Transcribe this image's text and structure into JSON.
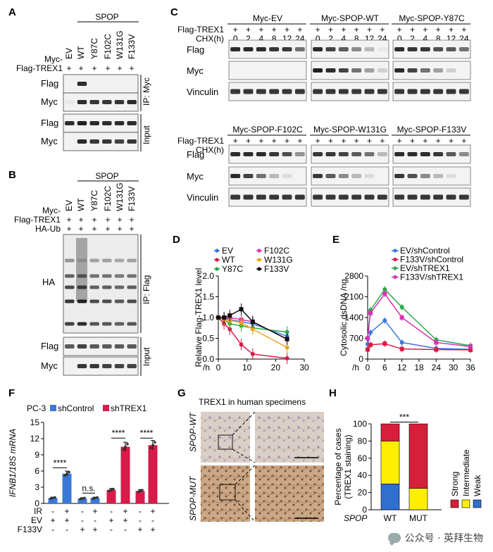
{
  "panelA": {
    "letter": "A",
    "spop": "SPOP",
    "myc_label": "Myc-",
    "trex_label": "Flag-TREX1",
    "lanes": [
      "EV",
      "WT",
      "Y87C",
      "F102C",
      "W131G",
      "F133V"
    ],
    "signs": [
      "+",
      "+",
      "+",
      "+",
      "+",
      "+"
    ],
    "rows": [
      "Flag",
      "Myc",
      "Flag",
      "Myc"
    ],
    "ip": "IP: Myc",
    "input": "Input"
  },
  "panelB": {
    "letter": "B",
    "spop": "SPOP",
    "myc_label": "Myc-",
    "trex_label": "Flag-TREX1",
    "ub_label": "HA-Ub",
    "lanes": [
      "EV",
      "WT",
      "Y87C",
      "F102C",
      "W131G",
      "F133V"
    ],
    "signs": [
      "+",
      "+",
      "+",
      "+",
      "+",
      "+"
    ],
    "rows": [
      "HA",
      "Flag",
      "Myc"
    ],
    "ip": "IP: Flag",
    "input": "Input"
  },
  "panelC": {
    "letter": "C",
    "trex_label": "Flag-TREX1",
    "chx_label": "CHX(h)",
    "timepoints": [
      "0",
      "2",
      "4",
      "8",
      "12",
      "24"
    ],
    "signs": [
      "+",
      "+",
      "+",
      "+",
      "+",
      "+"
    ],
    "groups": [
      "Myc-EV",
      "Myc-SPOP-WT",
      "Myc-SPOP-Y87C",
      "Myc-SPOP-F102C",
      "Myc-SPOP-W131G",
      "Myc-SPOP-F133V"
    ],
    "rows": [
      "Flag",
      "Myc",
      "Vinculin"
    ]
  },
  "panelD": {
    "letter": "D"
  },
  "panelE": {
    "letter": "E"
  },
  "panelF": {
    "letter": "F",
    "cell": "PC-3",
    "row_labels": [
      "IR",
      "EV",
      "F133V"
    ],
    "signs": {
      "IR": [
        "-",
        "+",
        "-",
        "+",
        "-",
        "+",
        "-",
        "+"
      ],
      "EV": [
        "+",
        "+",
        "-",
        "-",
        "+",
        "+",
        "-",
        "-"
      ],
      "F133V": [
        "-",
        "-",
        "+",
        "+",
        "-",
        "-",
        "+",
        "+"
      ]
    }
  },
  "panelG": {
    "letter": "G",
    "title": "TREX1 in human specimens",
    "wt_label": "SPOP-WT",
    "mut_label": "SPOP-MUT"
  },
  "panelH": {
    "letter": "H"
  },
  "watermark": "公众号 · 英拜生物",
  "colors": {
    "blue": "#3a78d8",
    "red": "#d81b48",
    "green": "#2aa84a",
    "pink": "#d633b2",
    "orange": "#f2a31b",
    "black": "#111111",
    "yellow": "#ffee00",
    "h_red": "#d61f3a",
    "h_blue": "#2f6fd0"
  },
  "chart_data": [
    {
      "type": "line",
      "title": "",
      "xlabel": "/h",
      "ylabel": "Relative Flag-TREX1 level",
      "xlim": [
        0,
        30
      ],
      "ylim": [
        0,
        2.0
      ],
      "xticks": [
        0,
        10,
        20,
        30
      ],
      "yticks": [
        0,
        0.5,
        1.0,
        1.5,
        2.0
      ],
      "x": [
        0,
        2,
        4,
        8,
        12,
        24
      ],
      "series": [
        {
          "name": "EV",
          "color": "#3a78d8",
          "values": [
            1.0,
            0.98,
            0.95,
            0.9,
            0.85,
            0.55
          ]
        },
        {
          "name": "WT",
          "color": "#d81b48",
          "values": [
            1.0,
            0.85,
            0.72,
            0.35,
            0.12,
            0.02
          ]
        },
        {
          "name": "Y87C",
          "color": "#2aa84a",
          "values": [
            1.0,
            0.95,
            0.85,
            0.8,
            0.75,
            0.65
          ]
        },
        {
          "name": "F102C",
          "color": "#d633b2",
          "values": [
            1.0,
            0.98,
            1.0,
            0.95,
            0.9,
            0.48
          ]
        },
        {
          "name": "W131G",
          "color": "#f2a31b",
          "values": [
            1.0,
            0.95,
            0.93,
            0.88,
            0.72,
            0.28
          ]
        },
        {
          "name": "F133V",
          "color": "#111111",
          "values": [
            1.0,
            1.0,
            1.05,
            1.2,
            0.9,
            0.48
          ]
        }
      ]
    },
    {
      "type": "line",
      "title": "",
      "xlabel": "/h",
      "ylabel": "Cytosolic dsDNA /ng",
      "xlim": [
        0,
        36
      ],
      "ylim": [
        0,
        2800
      ],
      "xticks": [
        0,
        6,
        12,
        18,
        24,
        30,
        36
      ],
      "yticks": [
        0,
        700,
        1400,
        2100,
        2800
      ],
      "x": [
        0,
        1,
        6,
        12,
        24,
        36
      ],
      "series": [
        {
          "name": "EV/shControl",
          "color": "#3a78d8",
          "values": [
            500,
            900,
            1300,
            560,
            360,
            330
          ]
        },
        {
          "name": "F133V/shControl",
          "color": "#d81b48",
          "values": [
            320,
            480,
            520,
            340,
            320,
            310
          ]
        },
        {
          "name": "EV/shTREX1",
          "color": "#2aa84a",
          "values": [
            700,
            1650,
            2350,
            1750,
            650,
            450
          ]
        },
        {
          "name": "F133V/shTREX1",
          "color": "#d633b2",
          "values": [
            700,
            1550,
            2200,
            1400,
            560,
            420
          ]
        }
      ]
    },
    {
      "type": "bar",
      "title": "",
      "ylabel": "IFNB1/18S mRNA",
      "ylim": [
        0,
        15
      ],
      "yticks": [
        0,
        3,
        6,
        9,
        12,
        15
      ],
      "groups": [
        "EV -IR",
        "EV +IR",
        "F133V -IR",
        "F133V +IR",
        "EV -IR",
        "EV +IR",
        "F133V -IR",
        "F133V +IR"
      ],
      "series": [
        {
          "name": "shControl",
          "color": "#3a78d8",
          "values": [
            1.0,
            5.5,
            0.9,
            1.0
          ]
        },
        {
          "name": "shTREX1",
          "color": "#d81b48",
          "values": [
            2.5,
            10.5,
            2.3,
            10.8
          ]
        }
      ],
      "values": [
        1.0,
        5.5,
        0.9,
        1.0,
        2.5,
        10.5,
        2.3,
        10.8
      ],
      "annotations": [
        "****",
        "n.s.",
        "****",
        "****"
      ]
    },
    {
      "type": "bar",
      "title": "",
      "xlabel": "SPOP",
      "ylabel": "Percentage of cases (TREX1 staining)",
      "ylim": [
        0,
        100
      ],
      "yticks": [
        0,
        20,
        40,
        60,
        80,
        100
      ],
      "categories": [
        "WT",
        "MUT"
      ],
      "series": [
        {
          "name": "Weak",
          "color": "#2f6fd0",
          "values": [
            30,
            0
          ]
        },
        {
          "name": "Intermediate",
          "color": "#ffee00",
          "values": [
            50,
            25
          ]
        },
        {
          "name": "Strong",
          "color": "#d61f3a",
          "values": [
            20,
            75
          ]
        }
      ],
      "annotations": [
        "***"
      ]
    }
  ]
}
